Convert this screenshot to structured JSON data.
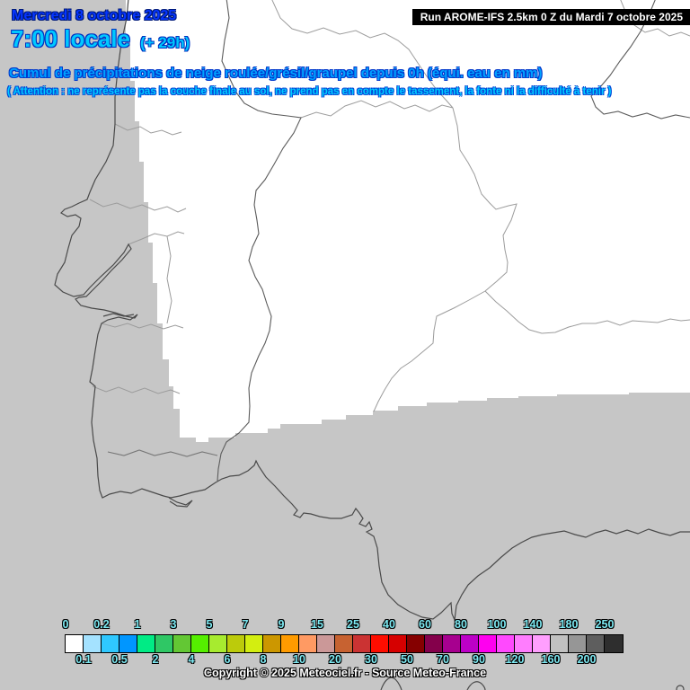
{
  "header": {
    "date_line": "Mercredi 8 octobre 2025",
    "time_line": "7:00 locale",
    "offset_label": "(+ 29h)",
    "run_label": "Run AROME-IFS 2.5km 0 Z du Mardi 7 octobre 2025",
    "title": "Cumul de précipitations de neige roulée/grésil/graupel depuis 0h (équi. eau en mm)",
    "warning": "( Attention : ne représente pas la couche finale au sol, ne prend pas en compte le tassement, la fonte ni la difficulté à tenir )"
  },
  "legend": {
    "unit": "mm",
    "top_labels": [
      "0",
      "0.2",
      "1",
      "3",
      "5",
      "7",
      "9",
      "15",
      "25",
      "40",
      "60",
      "80",
      "100",
      "140",
      "180",
      "250"
    ],
    "bottom_labels": [
      "0.1",
      "0.5",
      "2",
      "4",
      "6",
      "8",
      "10",
      "20",
      "30",
      "50",
      "70",
      "90",
      "120",
      "160",
      "200"
    ],
    "cells": [
      "#ffffff",
      "#a4e2ff",
      "#2fc8ff",
      "#0096ff",
      "#00eb85",
      "#2fc765",
      "#63c734",
      "#55ef00",
      "#a7eb2f",
      "#bccb0b",
      "#d3ee10",
      "#cc9700",
      "#ff9b00",
      "#ff9a63",
      "#cb9898",
      "#c76231",
      "#cb3333",
      "#fe0d00",
      "#d60000",
      "#850000",
      "#84004b",
      "#a7008f",
      "#bc00c7",
      "#fe00ef",
      "#ff49fe",
      "#ff7dfe",
      "#ff9ffe",
      "#c1c1c1",
      "#969696",
      "#5e5e5e",
      "#2e2e2e"
    ]
  },
  "footer": {
    "copyright": "Copyright © 2025 Meteociel.fr - Source Meteo-France"
  },
  "colors": {
    "outside_domain_gray": "#c6c6c6",
    "domain_white": "#ffffff",
    "coast_line": "#4a4a4a",
    "country_border": "#5c5c5c",
    "province_border": "#9c9c9c",
    "date_blue": "#0535ff",
    "cyan_text": "#00c8ff",
    "title_blue": "#00a2ff",
    "legend_label_cyan": "#7ce9f2",
    "run_box_bg": "#000000",
    "run_box_text": "#ffffff"
  }
}
